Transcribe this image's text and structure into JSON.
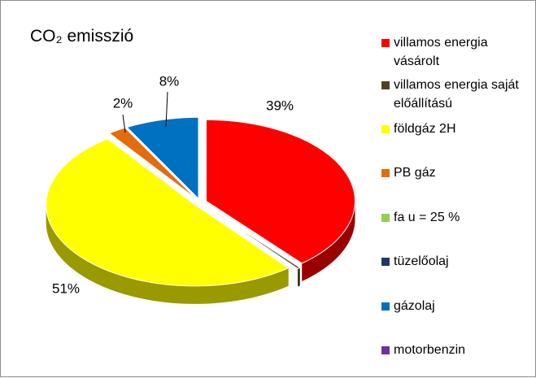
{
  "chart_data": {
    "type": "pie3d",
    "title": "CO₂ emisszió",
    "categories": [
      "villamos energia vásárolt",
      "villamos energia saját előállítású",
      "földgáz 2H",
      "PB gáz",
      "fa u = 25 %",
      "tüzelőolaj",
      "gázolaj",
      "motorbenzin"
    ],
    "values": [
      39,
      0.3,
      51,
      2,
      0,
      0,
      8,
      0
    ],
    "value_labels": [
      "39%",
      null,
      "51%",
      "2%",
      null,
      null,
      "8%",
      null
    ],
    "colors": [
      "#ff0000",
      "#4f4323",
      "#ffff00",
      "#e46c0a",
      "#92d050",
      "#1f3864",
      "#0070c0",
      "#7030a0"
    ]
  }
}
